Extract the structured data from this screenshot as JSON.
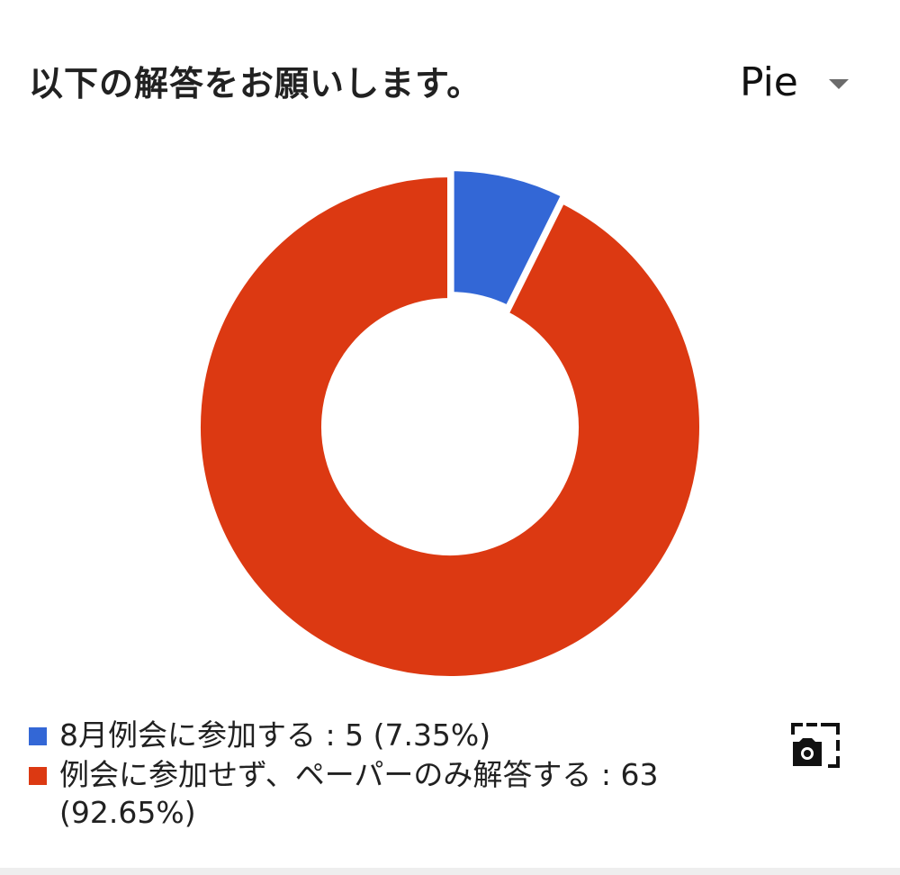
{
  "header": {
    "title": "以下の解答をお願いします。",
    "chart_type_label": "Pie"
  },
  "chart_data": {
    "type": "pie",
    "donut": true,
    "title": "以下の解答をお願いします。",
    "slices": [
      {
        "label": "8月例会に参加する",
        "value": 5,
        "percent": 7.35,
        "color": "#3367d6"
      },
      {
        "label": "例会に参加せず、ペーパーのみ解答する",
        "value": 63,
        "percent": 92.65,
        "color": "#dc3912"
      }
    ],
    "legend_position": "bottom"
  },
  "legend": {
    "items": [
      {
        "text": "8月例会に参加する : 5 (7.35%)",
        "color": "#3367d6"
      },
      {
        "text": "例会に参加せず、ペーパーのみ解答する : 63 (92.65%)",
        "color": "#dc3912"
      }
    ]
  },
  "icons": {
    "snapshot": "camera-snapshot-icon",
    "dropdown": "caret-down-icon"
  }
}
